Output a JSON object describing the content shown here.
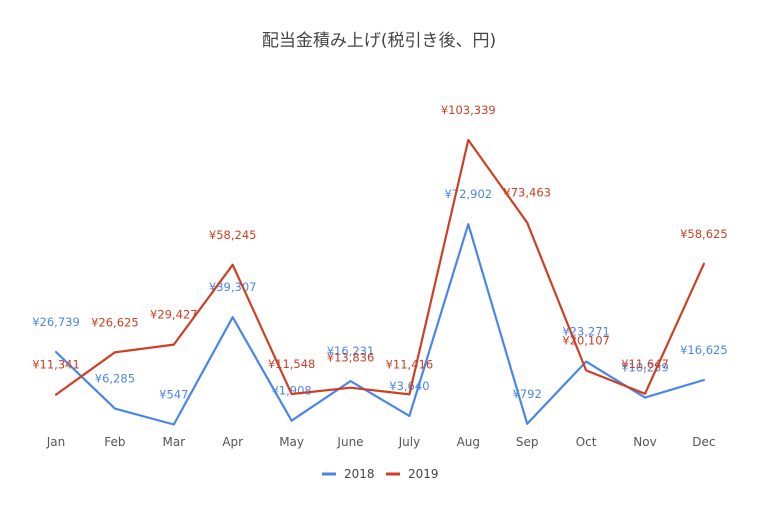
{
  "chart_data": {
    "type": "line",
    "title": "配当金積み上げ(税引き後、円)",
    "categories": [
      "Jan",
      "Feb",
      "Mar",
      "Apr",
      "May",
      "June",
      "July",
      "Aug",
      "Sep",
      "Oct",
      "Nov",
      "Dec"
    ],
    "series": [
      {
        "name": "2018",
        "color": "#4a86e8",
        "values": [
          26739,
          6285,
          547,
          39307,
          1908,
          16231,
          3640,
          72902,
          792,
          23271,
          10259,
          16625
        ],
        "labels": [
          "¥26,739",
          "¥6,285",
          "¥547",
          "¥39,307",
          "¥1,908",
          "¥16,231",
          "¥3,640",
          "¥72,902",
          "¥792",
          "¥23,271",
          "¥10,259",
          "¥16,625"
        ]
      },
      {
        "name": "2019",
        "color": "#cc4125",
        "values": [
          11341,
          26625,
          29427,
          58245,
          11548,
          13836,
          11416,
          103339,
          73463,
          20107,
          11647,
          58625
        ],
        "labels": [
          "¥11,341",
          "¥26,625",
          "¥29,427",
          "¥58,245",
          "¥11,548",
          "¥13,836",
          "¥11,416",
          "¥103,339",
          "¥73,463",
          "¥20,107",
          "¥11,647",
          "¥58,625"
        ]
      }
    ],
    "ylim": [
      0,
      110000
    ],
    "gridlines": false,
    "legend_position": "bottom"
  }
}
